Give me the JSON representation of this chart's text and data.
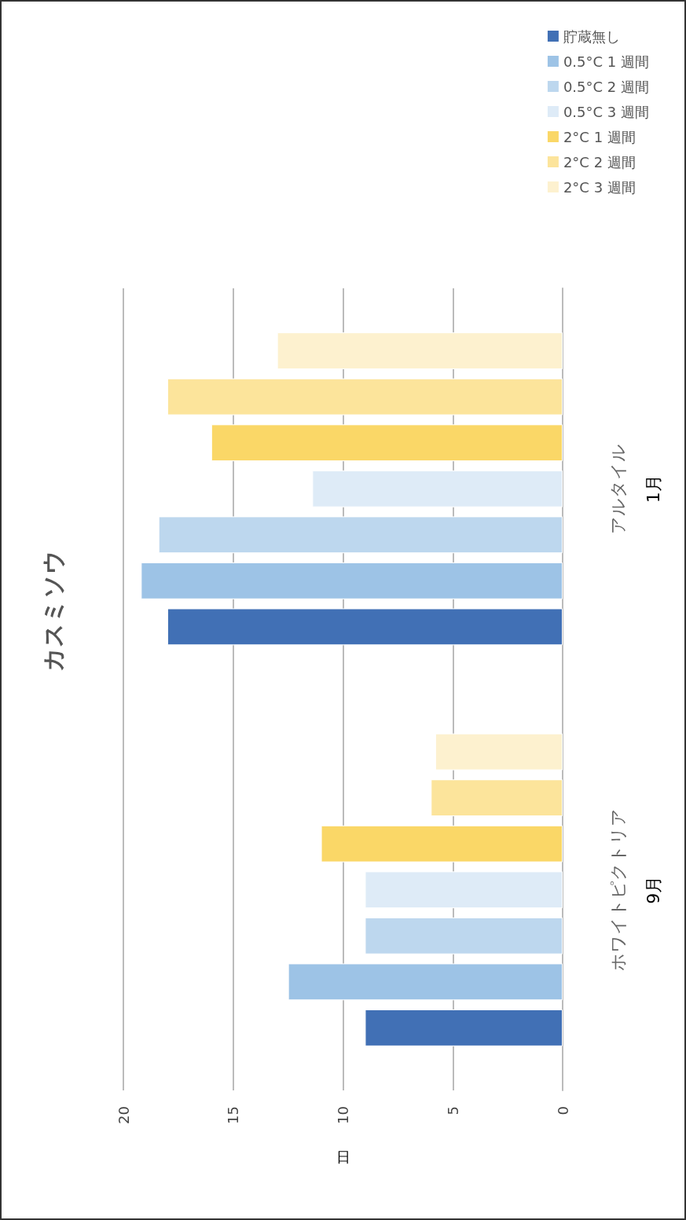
{
  "chart_data": {
    "type": "bar",
    "orientation": "horizontal",
    "title": "カスミソウ",
    "xlabel": "日",
    "categories": [
      "アルタイル\n1月",
      "ホワイトピクトリア\n9月"
    ],
    "series": [
      {
        "name": "貯蔵無し",
        "color": "#4170b5",
        "values": [
          18,
          9
        ]
      },
      {
        "name": "0.5°C 1 週間",
        "color": "#9dc3e6",
        "values": [
          19.2,
          12.5
        ]
      },
      {
        "name": "0.5°C 2 週間",
        "color": "#bdd7ee",
        "values": [
          18.4,
          9
        ]
      },
      {
        "name": "0.5°C 3 週間",
        "color": "#deebf7",
        "values": [
          11.4,
          9
        ]
      },
      {
        "name": "2°C 1 週間",
        "color": "#fad767",
        "values": [
          16,
          11
        ]
      },
      {
        "name": "2°C 2 週間",
        "color": "#fce49b",
        "values": [
          18,
          6
        ]
      },
      {
        "name": "2°C 3 週間",
        "color": "#fdf1cf",
        "values": [
          13,
          5.8
        ]
      }
    ],
    "xlim": [
      20,
      0
    ],
    "xticks": [
      0,
      5,
      10,
      15,
      20
    ],
    "grid": true,
    "legend": "top right"
  }
}
